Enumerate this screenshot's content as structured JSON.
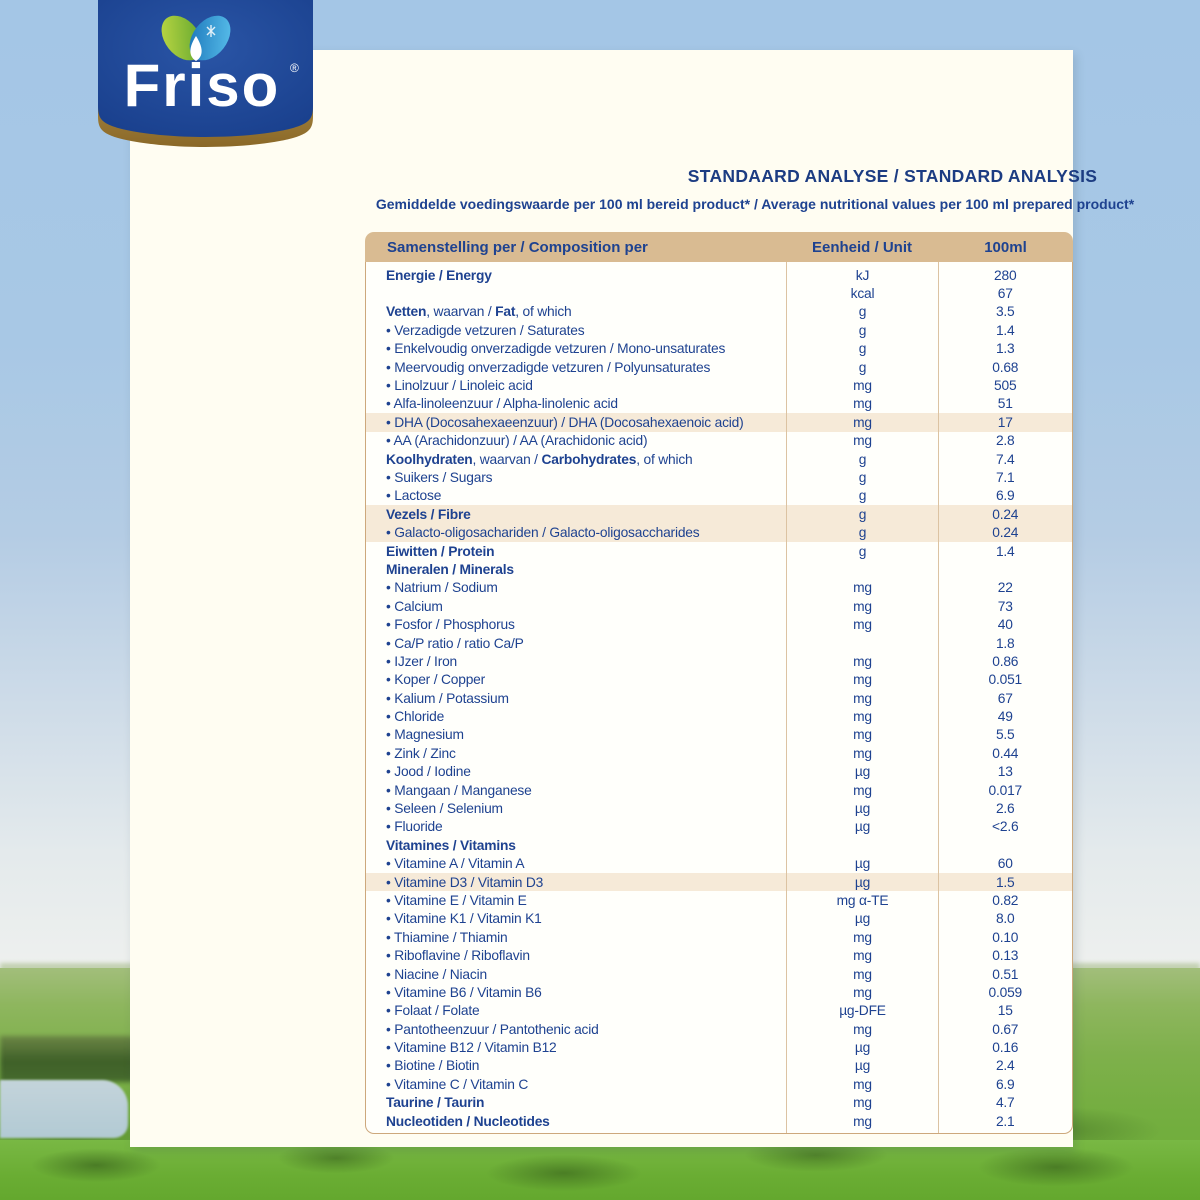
{
  "logo": {
    "brand": "Friso",
    "registered": "®"
  },
  "header": {
    "title": "STANDAARD ANALYSE / STANDARD ANALYSIS",
    "subtitle": "Gemiddelde voedingswaarde per 100 ml bereid product* / Average nutritional values per 100 ml prepared product*"
  },
  "table": {
    "columns": {
      "composition": "Samenstelling per / Composition per",
      "unit": "Eenheid / Unit",
      "amount": "100ml"
    },
    "rows": [
      {
        "label": "**Energie / Energy**",
        "unit": "kJ",
        "value": "280"
      },
      {
        "label": "",
        "unit": "kcal",
        "value": "67"
      },
      {
        "label": "**Vetten**, waarvan / **Fat**, of which",
        "unit": "g",
        "value": "3.5"
      },
      {
        "label": "• Verzadigde vetzuren / Saturates",
        "unit": "g",
        "value": "1.4"
      },
      {
        "label": "• Enkelvoudig onverzadigde vetzuren / Mono-unsaturates",
        "unit": "g",
        "value": "1.3"
      },
      {
        "label": "• Meervoudig onverzadigde vetzuren / Polyunsaturates",
        "unit": "g",
        "value": "0.68"
      },
      {
        "label": "• Linolzuur / Linoleic acid",
        "unit": "mg",
        "value": "505"
      },
      {
        "label": "• Alfa-linoleenzuur / Alpha-linolenic acid",
        "unit": "mg",
        "value": "51"
      },
      {
        "label": "• DHA (Docosahexaeenzuur) / DHA (Docosahexaenoic acid)",
        "unit": "mg",
        "value": "17",
        "highlight": true
      },
      {
        "label": "• AA (Arachidonzuur) / AA (Arachidonic acid)",
        "unit": "mg",
        "value": "2.8"
      },
      {
        "label": "**Koolhydraten**, waarvan / **Carbohydrates**, of which",
        "unit": "g",
        "value": "7.4"
      },
      {
        "label": "• Suikers / Sugars",
        "unit": "g",
        "value": "7.1"
      },
      {
        "label": "• Lactose",
        "unit": "g",
        "value": "6.9"
      },
      {
        "label": "**Vezels / Fibre**",
        "unit": "g",
        "value": "0.24",
        "highlight": true
      },
      {
        "label": "• Galacto-oligosachariden / Galacto-oligosaccharides",
        "unit": "g",
        "value": "0.24",
        "highlight": true
      },
      {
        "label": "**Eiwitten / Protein**",
        "unit": "g",
        "value": "1.4"
      },
      {
        "label": "**Mineralen / Minerals**",
        "unit": "",
        "value": ""
      },
      {
        "label": "• Natrium / Sodium",
        "unit": "mg",
        "value": "22"
      },
      {
        "label": "• Calcium",
        "unit": "mg",
        "value": "73"
      },
      {
        "label": "• Fosfor / Phosphorus",
        "unit": "mg",
        "value": "40"
      },
      {
        "label": "• Ca/P ratio / ratio Ca/P",
        "unit": "",
        "value": "1.8"
      },
      {
        "label": "• IJzer / Iron",
        "unit": "mg",
        "value": "0.86"
      },
      {
        "label": "• Koper / Copper",
        "unit": "mg",
        "value": "0.051"
      },
      {
        "label": "• Kalium / Potassium",
        "unit": "mg",
        "value": "67"
      },
      {
        "label": "• Chloride",
        "unit": "mg",
        "value": "49"
      },
      {
        "label": "• Magnesium",
        "unit": "mg",
        "value": "5.5"
      },
      {
        "label": "• Zink / Zinc",
        "unit": "mg",
        "value": "0.44"
      },
      {
        "label": "• Jood / Iodine",
        "unit": "µg",
        "value": "13"
      },
      {
        "label": "• Mangaan / Manganese",
        "unit": "mg",
        "value": "0.017"
      },
      {
        "label": "• Seleen / Selenium",
        "unit": "µg",
        "value": "2.6"
      },
      {
        "label": "• Fluoride",
        "unit": "µg",
        "value": "<2.6"
      },
      {
        "label": "**Vitamines / Vitamins**",
        "unit": "",
        "value": ""
      },
      {
        "label": "• Vitamine A / Vitamin A",
        "unit": "µg",
        "value": "60"
      },
      {
        "label": "• Vitamine D3 / Vitamin D3",
        "unit": "µg",
        "value": "1.5",
        "highlight": true
      },
      {
        "label": "• Vitamine E / Vitamin E",
        "unit": "mg α-TE",
        "value": "0.82"
      },
      {
        "label": "• Vitamine K1 / Vitamin K1",
        "unit": "µg",
        "value": "8.0"
      },
      {
        "label": "• Thiamine / Thiamin",
        "unit": "mg",
        "value": "0.10"
      },
      {
        "label": "• Riboflavine / Riboflavin",
        "unit": "mg",
        "value": "0.13"
      },
      {
        "label": "• Niacine / Niacin",
        "unit": "mg",
        "value": "0.51"
      },
      {
        "label": "• Vitamine B6 / Vitamin B6",
        "unit": "mg",
        "value": "0.059"
      },
      {
        "label": "• Folaat / Folate",
        "unit": "µg-DFE",
        "value": "15"
      },
      {
        "label": "• Pantotheenzuur / Pantothenic acid",
        "unit": "mg",
        "value": "0.67"
      },
      {
        "label": "• Vitamine B12 / Vitamin B12",
        "unit": "µg",
        "value": "0.16"
      },
      {
        "label": "• Biotine / Biotin",
        "unit": "µg",
        "value": "2.4"
      },
      {
        "label": "• Vitamine C / Vitamin C",
        "unit": "mg",
        "value": "6.9"
      },
      {
        "label": "**Taurine / Taurin**",
        "unit": "mg",
        "value": "4.7"
      },
      {
        "label": "**Nucleotiden / Nucleotides**",
        "unit": "mg",
        "value": "2.1"
      }
    ]
  },
  "colors": {
    "brand_blue": "#1d4796",
    "gold": "#a98a3f",
    "petal_green": "#7db43a",
    "petal_blue": "#2a9ad6",
    "header_tan": "#d9bb92",
    "highlight_beige": "#f6ead8",
    "text_blue": "#1e4290",
    "card_cream": "#fffdf2"
  }
}
